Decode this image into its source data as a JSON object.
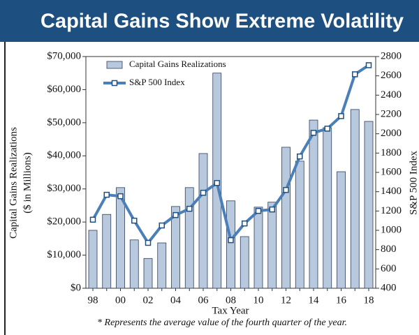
{
  "chart_data": {
    "type": "bar_line",
    "title": "Capital Gains Show Extreme Volatility",
    "y_label": [
      "Capital Gains Realizations",
      "($ in Millions)"
    ],
    "y2_label": "S&P 500 Index",
    "x_label": "Tax Year",
    "footnote": "* Represents the average value of the fourth quarter of the year.",
    "categories": [
      "98",
      null,
      "00",
      null,
      "02",
      null,
      "04",
      null,
      "06",
      null,
      "08",
      null,
      "10",
      null,
      "12",
      null,
      "14",
      null,
      "16",
      null,
      "18"
    ],
    "series": [
      {
        "name": "Capital Gains Realizations",
        "type": "bar",
        "color": "#b9c9dd",
        "values": [
          17500,
          22300,
          30400,
          14600,
          9000,
          13700,
          24700,
          30400,
          40700,
          65000,
          26400,
          15600,
          24500,
          26000,
          42600,
          38400,
          50800,
          48500,
          35200,
          54000,
          50400
        ]
      },
      {
        "name": "S&P 500 Index",
        "type": "line",
        "axis": "y2",
        "color": "#4a7fb8",
        "values": [
          1110,
          1368,
          1353,
          1100,
          870,
          1050,
          1158,
          1223,
          1389,
          1490,
          898,
          1071,
          1201,
          1216,
          1418,
          1765,
          2010,
          2053,
          2183,
          2616,
          2710
        ]
      }
    ],
    "ylim": [
      0,
      70000
    ],
    "yticks": [
      {
        "value": 0,
        "label": "$0"
      },
      {
        "value": 10000,
        "label": "$10,000"
      },
      {
        "value": 20000,
        "label": "$20,000"
      },
      {
        "value": 30000,
        "label": "$30,000"
      },
      {
        "value": 40000,
        "label": "$40,000"
      },
      {
        "value": 50000,
        "label": "$50,000"
      },
      {
        "value": 60000,
        "label": "$60,000"
      },
      {
        "value": 70000,
        "label": "$70,000"
      }
    ],
    "y2lim": [
      400,
      2800
    ],
    "y2ticks": [
      400,
      600,
      800,
      1000,
      1200,
      1400,
      1600,
      1800,
      2000,
      2200,
      2400,
      2600,
      2800
    ],
    "legend": "top-left"
  }
}
